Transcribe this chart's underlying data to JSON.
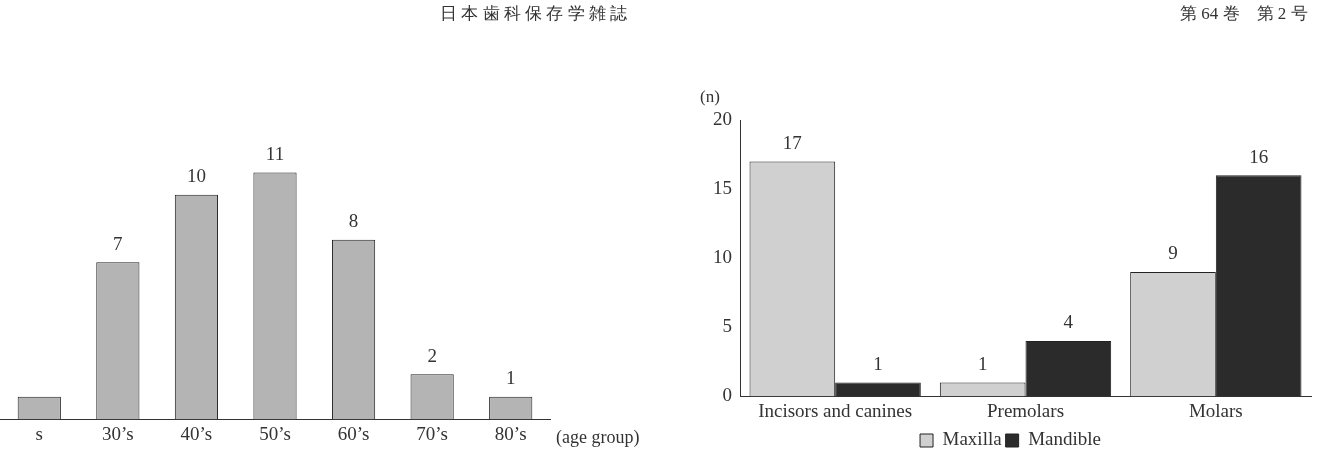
{
  "chart_data": [
    {
      "type": "other",
      "annotations": [
        "日 本 歯 科 保 存 学 雑 誌",
        "第 64 巻　第 2 号"
      ]
    },
    {
      "type": "bar",
      "xlabel": "(age group)",
      "categories": [
        "s",
        "30’s",
        "40’s",
        "50’s",
        "60’s",
        "70’s",
        "80’s"
      ],
      "values": [
        1,
        7,
        10,
        11,
        8,
        2,
        1
      ],
      "value_labels": [
        null,
        "7",
        "10",
        "11",
        "8",
        "2",
        "1"
      ],
      "color": "#b4b4b4",
      "tick_labels": "x",
      "grid": false,
      "legend": false
    },
    {
      "type": "bar",
      "ylabel": "(n)",
      "categories": [
        "Incisors and canines",
        "Premolars",
        "Molars"
      ],
      "series": [
        {
          "name": "Maxilla",
          "color": "#d0d0d0",
          "values": [
            17,
            1,
            9
          ]
        },
        {
          "name": "Mandible",
          "color": "#2b2b2b",
          "values": [
            1,
            4,
            16
          ]
        }
      ],
      "ylim": [
        0,
        20
      ],
      "yticks": [
        0,
        5,
        10,
        15,
        20
      ],
      "data_labels": true,
      "grid": false,
      "legend": "bottom"
    }
  ]
}
